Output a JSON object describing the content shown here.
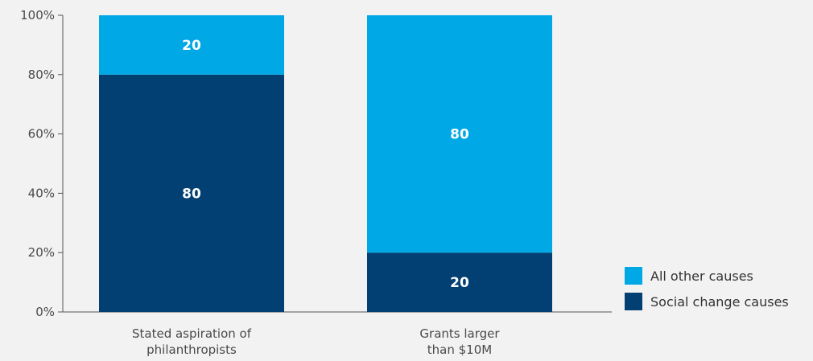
{
  "chart_data": {
    "type": "bar",
    "stacked": true,
    "categories": [
      [
        "Stated aspiration of",
        "philanthropists"
      ],
      [
        "Grants larger",
        "than $10M"
      ]
    ],
    "series": [
      {
        "name": "Social change causes",
        "values": [
          80,
          20
        ],
        "color": "#023f73",
        "label_color": "#ffffff"
      },
      {
        "name": "All other causes",
        "values": [
          20,
          80
        ],
        "color": "#00a8e6",
        "label_color": "#ffffff"
      }
    ],
    "data_labels": [
      [
        "80",
        "20"
      ],
      [
        "20",
        "80"
      ]
    ],
    "ylim": [
      0,
      100
    ],
    "yticks": [
      0,
      20,
      40,
      60,
      80,
      100
    ],
    "ytick_labels": [
      "0%",
      "20%",
      "40%",
      "60%",
      "80%",
      "100%"
    ],
    "title": "",
    "xlabel": "",
    "ylabel": "",
    "grid": false,
    "legend_position": "bottom-right",
    "legend_order": [
      "All other causes",
      "Social change causes"
    ],
    "axis_color": "#555555",
    "background": "#f2f2f2"
  }
}
